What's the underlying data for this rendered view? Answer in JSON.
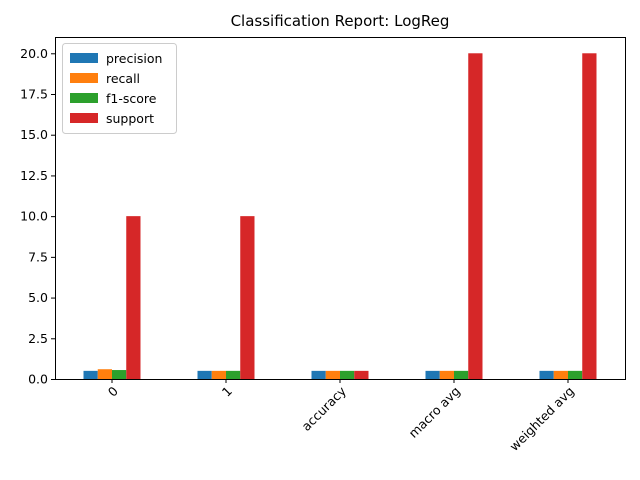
{
  "chart_data": {
    "type": "bar",
    "title": "Classification Report: LogReg",
    "xlabel": "",
    "ylabel": "",
    "categories": [
      "0",
      "1",
      "accuracy",
      "macro avg",
      "weighted avg"
    ],
    "series": [
      {
        "name": "precision",
        "color": "#1f77b4",
        "values": [
          0.5,
          0.5,
          0.5,
          0.5,
          0.5
        ]
      },
      {
        "name": "recall",
        "color": "#ff7f0e",
        "values": [
          0.6,
          0.5,
          0.5,
          0.5,
          0.5
        ]
      },
      {
        "name": "f1-score",
        "color": "#2ca02c",
        "values": [
          0.55,
          0.5,
          0.5,
          0.5,
          0.5
        ]
      },
      {
        "name": "support",
        "color": "#d62728",
        "values": [
          10,
          10,
          0.5,
          20,
          20
        ]
      }
    ],
    "ylim": [
      0,
      21
    ],
    "yticks": [
      0.0,
      2.5,
      5.0,
      7.5,
      10.0,
      12.5,
      15.0,
      17.5,
      20.0
    ],
    "ytick_labels": [
      "0.0",
      "2.5",
      "5.0",
      "7.5",
      "10.0",
      "12.5",
      "15.0",
      "17.5",
      "20.0"
    ],
    "xtick_rotation": 45,
    "grid": false,
    "legend_position": "top-left"
  }
}
